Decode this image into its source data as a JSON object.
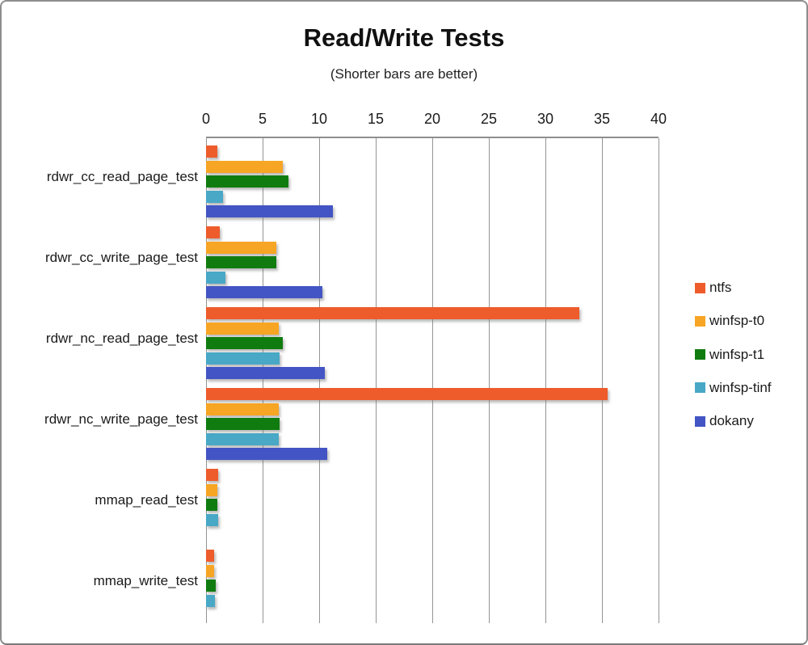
{
  "chart_data": {
    "type": "bar",
    "orientation": "horizontal",
    "title": "Read/Write Tests",
    "subtitle": "(Shorter bars are better)",
    "xlabel": "",
    "ylabel": "",
    "xlim": [
      0,
      40
    ],
    "xticks": [
      0,
      5,
      10,
      15,
      20,
      25,
      30,
      35,
      40
    ],
    "grid": "vertical-gridlines-on",
    "legend_position": "right",
    "categories": [
      "rdwr_cc_read_page_test",
      "rdwr_cc_write_page_test",
      "rdwr_nc_read_page_test",
      "rdwr_nc_write_page_test",
      "mmap_read_test",
      "mmap_write_test"
    ],
    "series": [
      {
        "name": "ntfs",
        "color": "#EE5C2C",
        "values": [
          1.0,
          1.2,
          33.0,
          35.5,
          1.1,
          0.7
        ]
      },
      {
        "name": "winfsp-t0",
        "color": "#F7A524",
        "values": [
          6.8,
          6.2,
          6.4,
          6.4,
          1.0,
          0.7
        ]
      },
      {
        "name": "winfsp-t1",
        "color": "#107C10",
        "values": [
          7.3,
          6.2,
          6.8,
          6.5,
          1.0,
          0.85
        ]
      },
      {
        "name": "winfsp-tinf",
        "color": "#48A8C6",
        "values": [
          1.5,
          1.7,
          6.5,
          6.4,
          1.1,
          0.8
        ]
      },
      {
        "name": "dokany",
        "color": "#4355C4",
        "values": [
          11.2,
          10.3,
          10.5,
          10.7,
          0,
          0
        ]
      }
    ]
  },
  "style_colors": {
    "gridline": "#949494",
    "axis_line": "#8f8f8f",
    "frame_border": "#8e8e8e",
    "text": "#1a1a1a"
  }
}
